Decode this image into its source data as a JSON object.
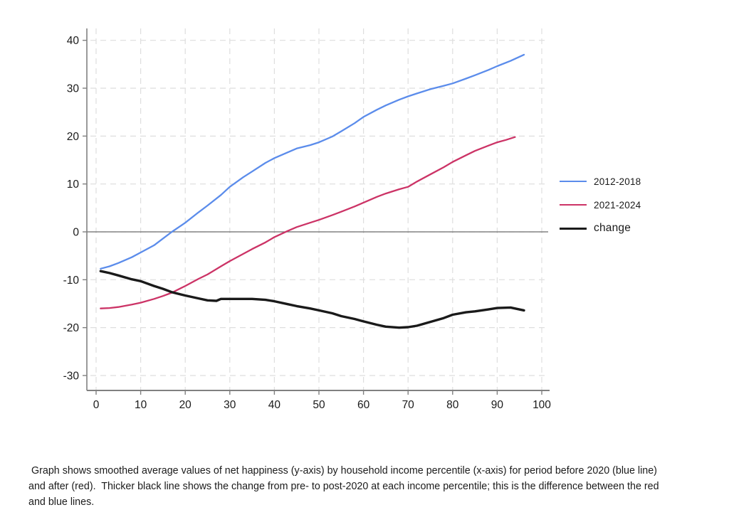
{
  "caption": {
    "text": " Graph shows smoothed average values of net happiness (y-axis) by household income percentile (x-axis) for period before 2020 (blue line) and after (red).  Thicker black line shows the change from pre- to post-2020 at each income percentile; this is the difference between the red and blue lines."
  },
  "colors": {
    "axis": "#808080",
    "grid": "#dedede",
    "zero_line": "#6b6b6b",
    "tick_label": "#1a1a1a",
    "background": "#ffffff"
  },
  "chart_data": {
    "type": "line",
    "title": "",
    "xlabel": "",
    "ylabel": "",
    "x_ticks": [
      0,
      10,
      20,
      30,
      40,
      50,
      60,
      70,
      80,
      90,
      100
    ],
    "y_ticks": [
      40,
      30,
      20,
      10,
      0,
      -10,
      -20,
      -30
    ],
    "xlim": [
      -2,
      101
    ],
    "ylim": [
      -33,
      42.5
    ],
    "grid": "dashed-both",
    "zero_line": true,
    "legend_position": "right-outside",
    "series": [
      {
        "name": "2012-2018",
        "color": "#5b8ceb",
        "width": 2.3,
        "x": [
          1,
          3,
          5,
          8,
          10,
          13,
          15,
          17,
          20,
          23,
          25,
          28,
          30,
          33,
          35,
          38,
          40,
          43,
          45,
          48,
          50,
          53,
          55,
          58,
          60,
          63,
          65,
          68,
          70,
          72,
          75,
          78,
          80,
          83,
          85,
          88,
          90,
          93,
          96
        ],
        "y": [
          -7.7,
          -7.2,
          -6.5,
          -5.3,
          -4.3,
          -2.8,
          -1.4,
          0,
          1.9,
          4.1,
          5.5,
          7.7,
          9.4,
          11.4,
          12.6,
          14.4,
          15.4,
          16.6,
          17.4,
          18.1,
          18.7,
          19.9,
          21,
          22.7,
          24,
          25.5,
          26.4,
          27.6,
          28.3,
          28.9,
          29.8,
          30.5,
          31,
          32,
          32.7,
          33.8,
          34.6,
          35.7,
          37
        ]
      },
      {
        "name": "2021-2024",
        "color": "#cc3366",
        "width": 2.3,
        "x": [
          1,
          3,
          5,
          8,
          10,
          13,
          15,
          17,
          20,
          23,
          25,
          28,
          30,
          33,
          35,
          38,
          40,
          43,
          45,
          48,
          50,
          53,
          55,
          58,
          60,
          63,
          65,
          68,
          70,
          72,
          75,
          78,
          80,
          83,
          85,
          88,
          90,
          92,
          94
        ],
        "y": [
          -16,
          -15.9,
          -15.7,
          -15.2,
          -14.8,
          -14,
          -13.4,
          -12.7,
          -11.3,
          -9.8,
          -8.9,
          -7.2,
          -6.1,
          -4.6,
          -3.6,
          -2.2,
          -1.1,
          0.2,
          1,
          1.9,
          2.5,
          3.5,
          4.2,
          5.3,
          6.1,
          7.3,
          8,
          8.9,
          9.4,
          10.5,
          12,
          13.5,
          14.6,
          16,
          16.9,
          18,
          18.7,
          19.2,
          19.8
        ]
      },
      {
        "name": "change",
        "color": "#1a1a1a",
        "width": 3.4,
        "x": [
          1,
          3,
          5,
          8,
          10,
          13,
          15,
          17,
          20,
          23,
          25,
          27,
          28,
          30,
          33,
          35,
          38,
          40,
          43,
          45,
          48,
          50,
          53,
          55,
          58,
          60,
          63,
          65,
          68,
          70,
          72,
          75,
          78,
          80,
          83,
          85,
          88,
          90,
          93,
          96
        ],
        "y": [
          -8.2,
          -8.6,
          -9.1,
          -9.9,
          -10.3,
          -11.3,
          -11.9,
          -12.6,
          -13.3,
          -13.9,
          -14.3,
          -14.4,
          -14,
          -14,
          -14,
          -14,
          -14.2,
          -14.5,
          -15.1,
          -15.5,
          -16,
          -16.4,
          -17,
          -17.6,
          -18.2,
          -18.7,
          -19.4,
          -19.8,
          -20,
          -19.9,
          -19.6,
          -18.8,
          -18,
          -17.3,
          -16.8,
          -16.6,
          -16.2,
          -15.9,
          -15.8,
          -16.4
        ]
      }
    ]
  }
}
